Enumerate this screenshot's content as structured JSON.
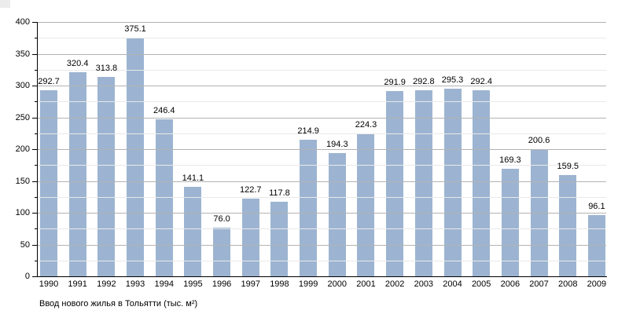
{
  "chart_data": {
    "type": "bar",
    "title": "Ввод нового жилья в Тольятти (тыс. м²)",
    "categories": [
      "1990",
      "1991",
      "1992",
      "1993",
      "1994",
      "1995",
      "1996",
      "1997",
      "1998",
      "1999",
      "2000",
      "2001",
      "2002",
      "2003",
      "2004",
      "2005",
      "2006",
      "2007",
      "2008",
      "2009"
    ],
    "values": [
      292.7,
      320.4,
      313.8,
      375.1,
      246.4,
      141.1,
      76.0,
      122.7,
      117.8,
      214.9,
      194.3,
      224.3,
      291.9,
      292.8,
      295.3,
      292.4,
      169.3,
      200.6,
      159.5,
      96.1
    ],
    "xlabel": "",
    "ylabel": "",
    "ylim": [
      0,
      400
    ],
    "y_major_ticks": [
      0,
      50,
      100,
      150,
      200,
      250,
      300,
      350,
      400
    ],
    "y_minor_step": 25,
    "grid": "major-and-minor, drawn over bars",
    "legend": "none",
    "value_labels": "one decimal above each bar",
    "colors": {
      "bar_fill": "#9cb4d1",
      "major_grid": "#b3b3b3",
      "minor_grid": "#e9e9e9",
      "axis": "#000000",
      "text": "#000000",
      "corner_artifact": "#ececec",
      "background": "#ffffff"
    }
  }
}
